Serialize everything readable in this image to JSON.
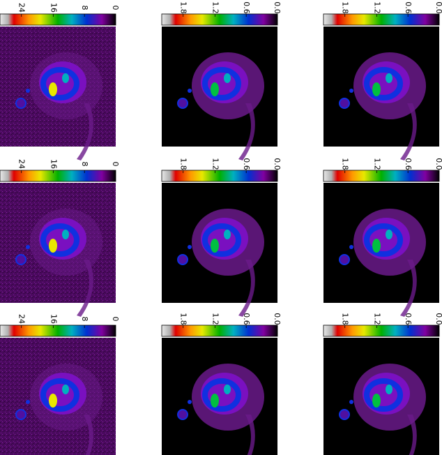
{
  "panels": [
    {
      "ticks": [
        "24",
        "16",
        "8",
        "0"
      ]
    },
    {
      "ticks": [
        "1.8",
        "1.2",
        "0.6",
        "0.0"
      ]
    },
    {
      "ticks": [
        "1.8",
        "1.2",
        "0.6",
        "0.0"
      ]
    },
    {
      "ticks": [
        "24",
        "16",
        "8",
        "0"
      ]
    },
    {
      "ticks": [
        "1.8",
        "1.2",
        "0.6",
        "0.0"
      ]
    },
    {
      "ticks": [
        "1.8",
        "1.2",
        "0.6",
        "0.0"
      ]
    },
    {
      "ticks": [
        "24",
        "16",
        "8",
        "0"
      ]
    },
    {
      "ticks": [
        "1.8",
        "1.2",
        "0.6",
        "0.0"
      ]
    },
    {
      "ticks": [
        "1.8",
        "1.2",
        "0.6",
        "0.0"
      ]
    }
  ]
}
